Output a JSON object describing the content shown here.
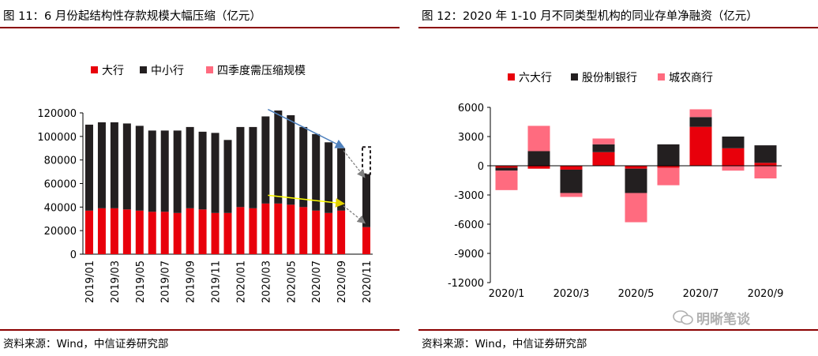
{
  "left": {
    "caption": "图 11：6 月份起结构性存款规模大幅压缩（亿元）",
    "source": "资料来源：Wind，中信证券研究部"
  },
  "right": {
    "caption": "图 12：2020 年 1-10 月不同类型机构的同业存单净融资（亿元）",
    "source": "资料来源：Wind，中信证券研究部",
    "watermark": "明晰笔谈"
  },
  "chart_data": [
    {
      "type": "bar",
      "stacked": true,
      "categories": [
        "2019/01",
        "2019/02",
        "2019/03",
        "2019/04",
        "2019/05",
        "2019/06",
        "2019/07",
        "2019/08",
        "2019/09",
        "2019/10",
        "2019/11",
        "2019/12",
        "2020/01",
        "2020/02",
        "2020/03",
        "2020/04",
        "2020/05",
        "2020/06",
        "2020/07",
        "2020/08",
        "2020/09",
        "2020/10",
        "2020/11"
      ],
      "x_tick_labels": [
        "2019/01",
        "2019/03",
        "2019/05",
        "2019/07",
        "2019/09",
        "2019/11",
        "2020/01",
        "2020/03",
        "2020/05",
        "2020/07",
        "2020/09",
        "2020/11"
      ],
      "series": [
        {
          "name": "大行",
          "color": "#e8000b",
          "values": [
            37000,
            39000,
            39000,
            38000,
            37000,
            36000,
            36000,
            35000,
            39000,
            38000,
            35000,
            35000,
            40000,
            39000,
            43000,
            43000,
            42000,
            40000,
            37000,
            35000,
            37000,
            null,
            23000
          ]
        },
        {
          "name": "中小行",
          "color": "#231f20",
          "values": [
            73000,
            73000,
            73000,
            73000,
            72000,
            69000,
            69000,
            70000,
            69000,
            66000,
            68000,
            62000,
            68000,
            69000,
            74000,
            79000,
            76000,
            68000,
            65000,
            60000,
            53000,
            null,
            45000
          ]
        },
        {
          "name": "四季度需压缩规模",
          "color": "#ff6b7f",
          "values": [
            0,
            0,
            0,
            0,
            0,
            0,
            0,
            0,
            0,
            0,
            0,
            0,
            0,
            0,
            0,
            0,
            0,
            0,
            0,
            0,
            0,
            null,
            23000
          ]
        }
      ],
      "ylim": [
        0,
        120000
      ],
      "yticks": [
        0,
        20000,
        40000,
        60000,
        80000,
        100000,
        120000
      ],
      "legend": "top"
    },
    {
      "type": "bar",
      "stacked": true,
      "categories": [
        "2020/1",
        "2020/2",
        "2020/3",
        "2020/4",
        "2020/5",
        "2020/6",
        "2020/7",
        "2020/8",
        "2020/9"
      ],
      "x_tick_labels": [
        "2020/1",
        "2020/3",
        "2020/5",
        "2020/7",
        "2020/9"
      ],
      "series": [
        {
          "name": "六大行",
          "color": "#e8000b",
          "values": [
            -200,
            -300,
            -400,
            1400,
            -300,
            -200,
            4000,
            1800,
            300
          ]
        },
        {
          "name": "股份制银行",
          "color": "#231f20",
          "values": [
            -300,
            1500,
            -2400,
            800,
            -2500,
            2200,
            1000,
            1200,
            1800
          ]
        },
        {
          "name": "城农商行",
          "color": "#ff6b7f",
          "values": [
            -2000,
            2600,
            -400,
            600,
            -3000,
            -1800,
            800,
            -500,
            -1300
          ]
        }
      ],
      "ylim": [
        -12000,
        6000
      ],
      "yticks": [
        6000,
        3000,
        0,
        -3000,
        -6000,
        -9000,
        -12000
      ],
      "legend": "top"
    }
  ]
}
